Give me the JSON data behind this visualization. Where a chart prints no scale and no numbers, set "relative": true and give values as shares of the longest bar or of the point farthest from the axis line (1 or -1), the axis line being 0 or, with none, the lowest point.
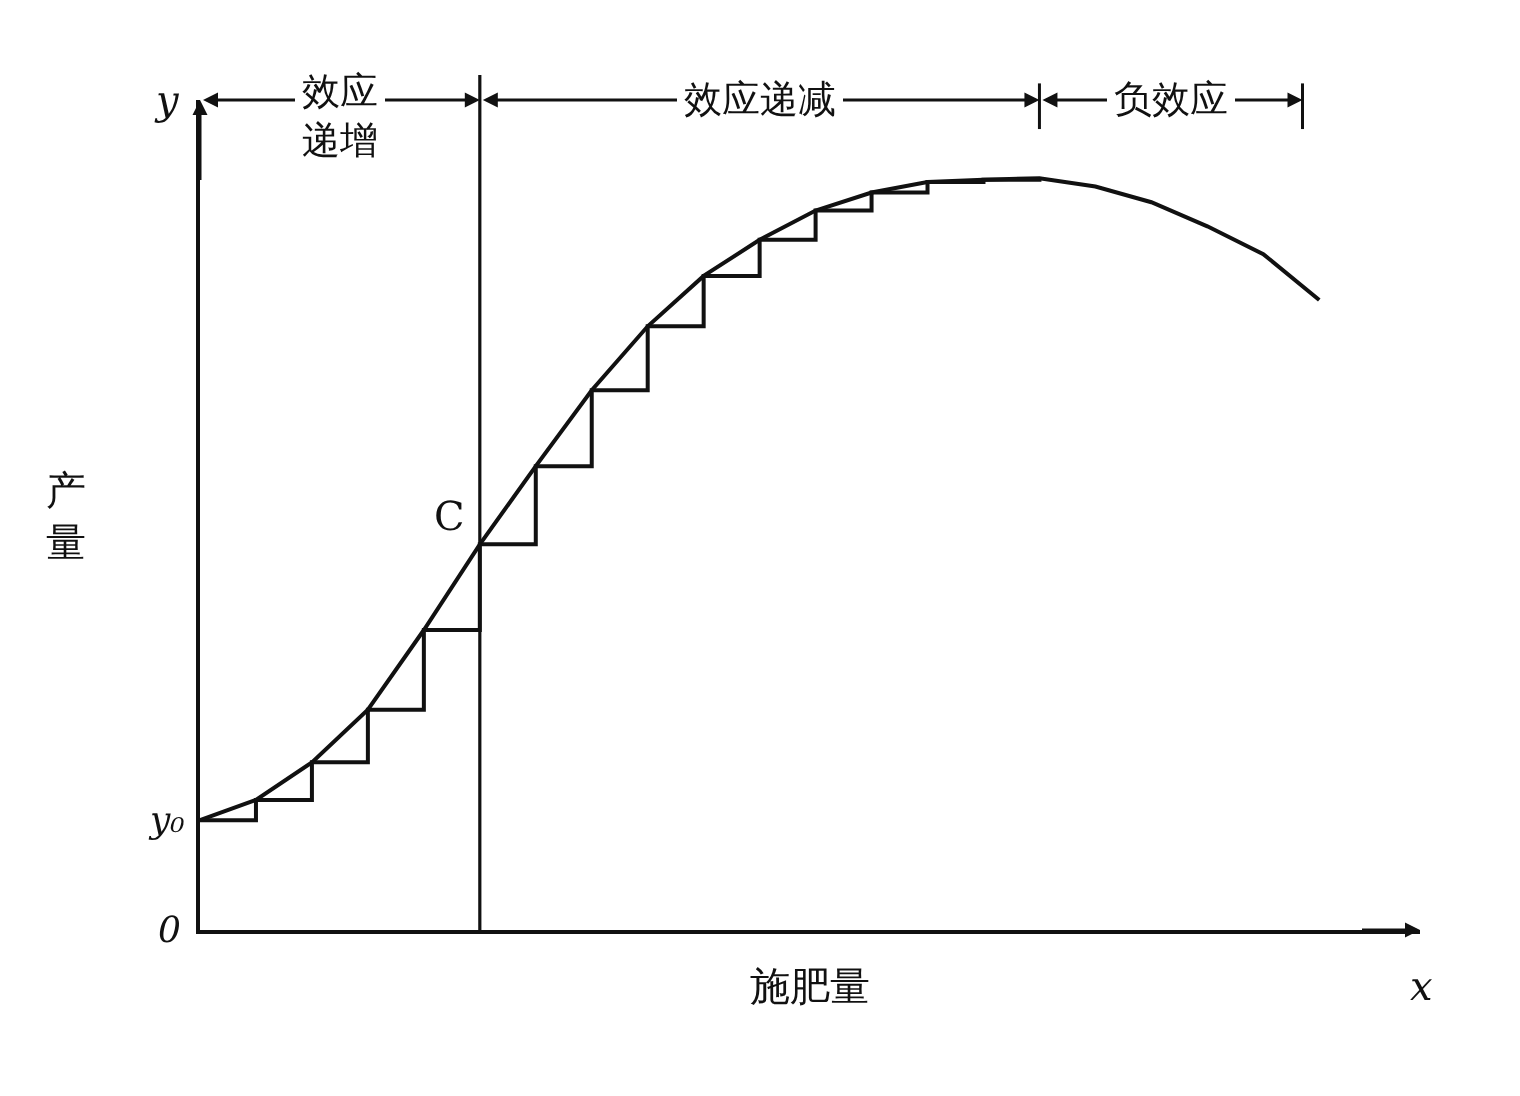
{
  "chart_data": {
    "type": "line",
    "relative": true,
    "xlabel": "施肥量",
    "ylabel": "产量",
    "categories": [
      null,
      null,
      null,
      null,
      null,
      null,
      null,
      null,
      null,
      null,
      null,
      null,
      null,
      null,
      null,
      null,
      null,
      null,
      null,
      null,
      null
    ],
    "series": [
      {
        "color": "#111111",
        "values": [
          0.146,
          0.173,
          0.223,
          0.293,
          0.399,
          0.513,
          0.617,
          0.718,
          0.803,
          0.87,
          0.918,
          0.957,
          0.981,
          0.995,
          0.998,
          1,
          0.989,
          0.968,
          0.936,
          0.899,
          0.838
        ]
      },
      {
        "type": "step",
        "color": "#111111",
        "values": [
          0.146,
          0.173,
          0.223,
          0.293,
          0.399,
          0.513,
          0.617,
          0.718,
          0.803,
          0.87,
          0.918,
          0.957,
          0.981,
          0.995,
          0.998,
          1,
          null,
          null,
          null,
          null,
          null
        ]
      }
    ],
    "annotations": [
      "效应递增",
      "效应递减",
      "负效应",
      "C",
      "y",
      "x",
      "0",
      "y₀"
    ],
    "marker": "none",
    "line_style": "solid"
  }
}
